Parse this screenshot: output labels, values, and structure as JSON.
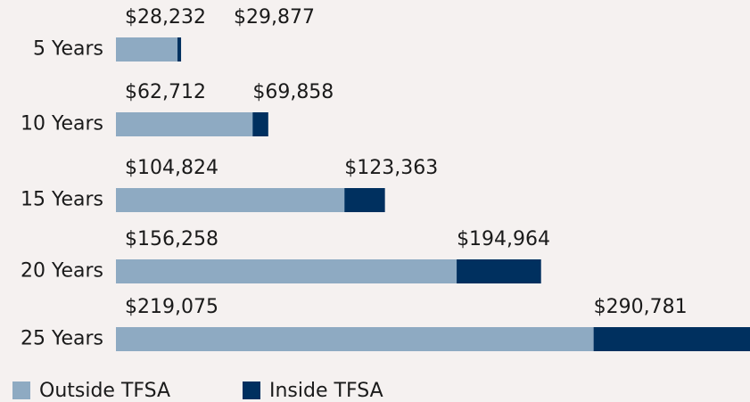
{
  "chart_data": {
    "type": "bar",
    "orientation": "horizontal",
    "categories": [
      "5 Years",
      "10 Years",
      "15 Years",
      "20 Years",
      "25 Years"
    ],
    "series": [
      {
        "name": "Outside TFSA",
        "color": "#8eaac2",
        "values": [
          28232,
          62712,
          104824,
          156258,
          219075
        ],
        "value_labels": [
          "$28,232",
          "$62,712",
          "$104,824",
          "$156,258",
          "$219,075"
        ]
      },
      {
        "name": "Inside TFSA",
        "color": "#00305f",
        "values": [
          29877,
          69858,
          123363,
          194964,
          290781
        ],
        "value_labels": [
          "$29,877",
          "$69,858",
          "$123,363",
          "$194,964",
          "$290,781"
        ]
      }
    ],
    "xlim": [
      0,
      290781
    ]
  }
}
